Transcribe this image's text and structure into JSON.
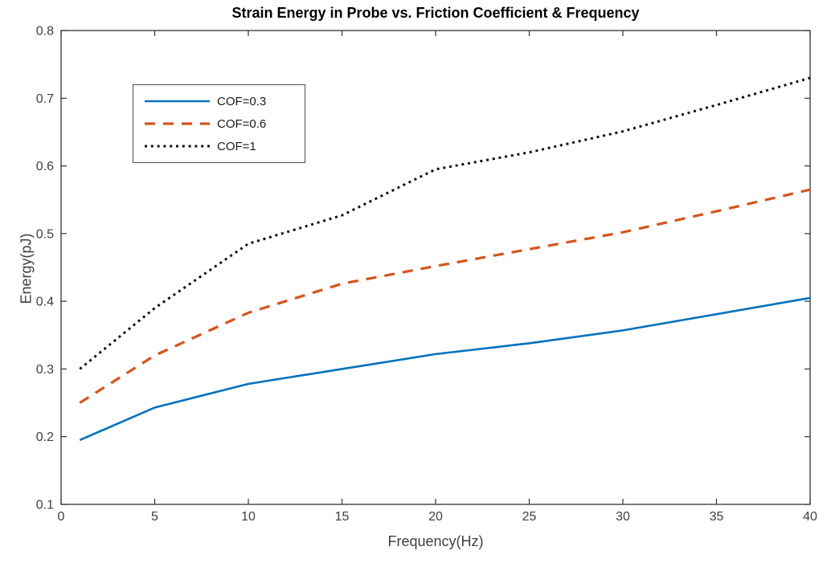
{
  "chart_data": {
    "type": "line",
    "title": "Strain Energy in Probe vs. Friction Coefficient & Frequency",
    "xlabel": "Frequency(Hz)",
    "ylabel": "Energy(pJ)",
    "xlim": [
      0,
      40
    ],
    "ylim": [
      0.1,
      0.8
    ],
    "x_ticks": [
      0,
      5,
      10,
      15,
      20,
      25,
      30,
      35,
      40
    ],
    "y_ticks": [
      0.1,
      0.2,
      0.3,
      0.4,
      0.5,
      0.6,
      0.7,
      0.8
    ],
    "grid": false,
    "legend_position": "upper-left-inside",
    "x": [
      1,
      5,
      10,
      15,
      20,
      25,
      30,
      35,
      40
    ],
    "series": [
      {
        "name": "COF=0.3",
        "color": "#0072BD",
        "style": "solid",
        "width": 2.6,
        "values": [
          0.195,
          0.243,
          0.278,
          0.3,
          0.322,
          0.338,
          0.357,
          0.381,
          0.405
        ]
      },
      {
        "name": "COF=0.6",
        "color": "#D95319",
        "style": "dashed",
        "width": 3.2,
        "values": [
          0.25,
          0.32,
          0.383,
          0.426,
          0.452,
          0.477,
          0.502,
          0.533,
          0.565
        ]
      },
      {
        "name": "COF=1",
        "color": "#0f0f0f",
        "style": "dotted",
        "width": 3.0,
        "values": [
          0.3,
          0.39,
          0.485,
          0.527,
          0.595,
          0.62,
          0.651,
          0.69,
          0.73
        ]
      }
    ],
    "axis_color": "#333333",
    "tick_label_color": "#3f3f3f"
  }
}
